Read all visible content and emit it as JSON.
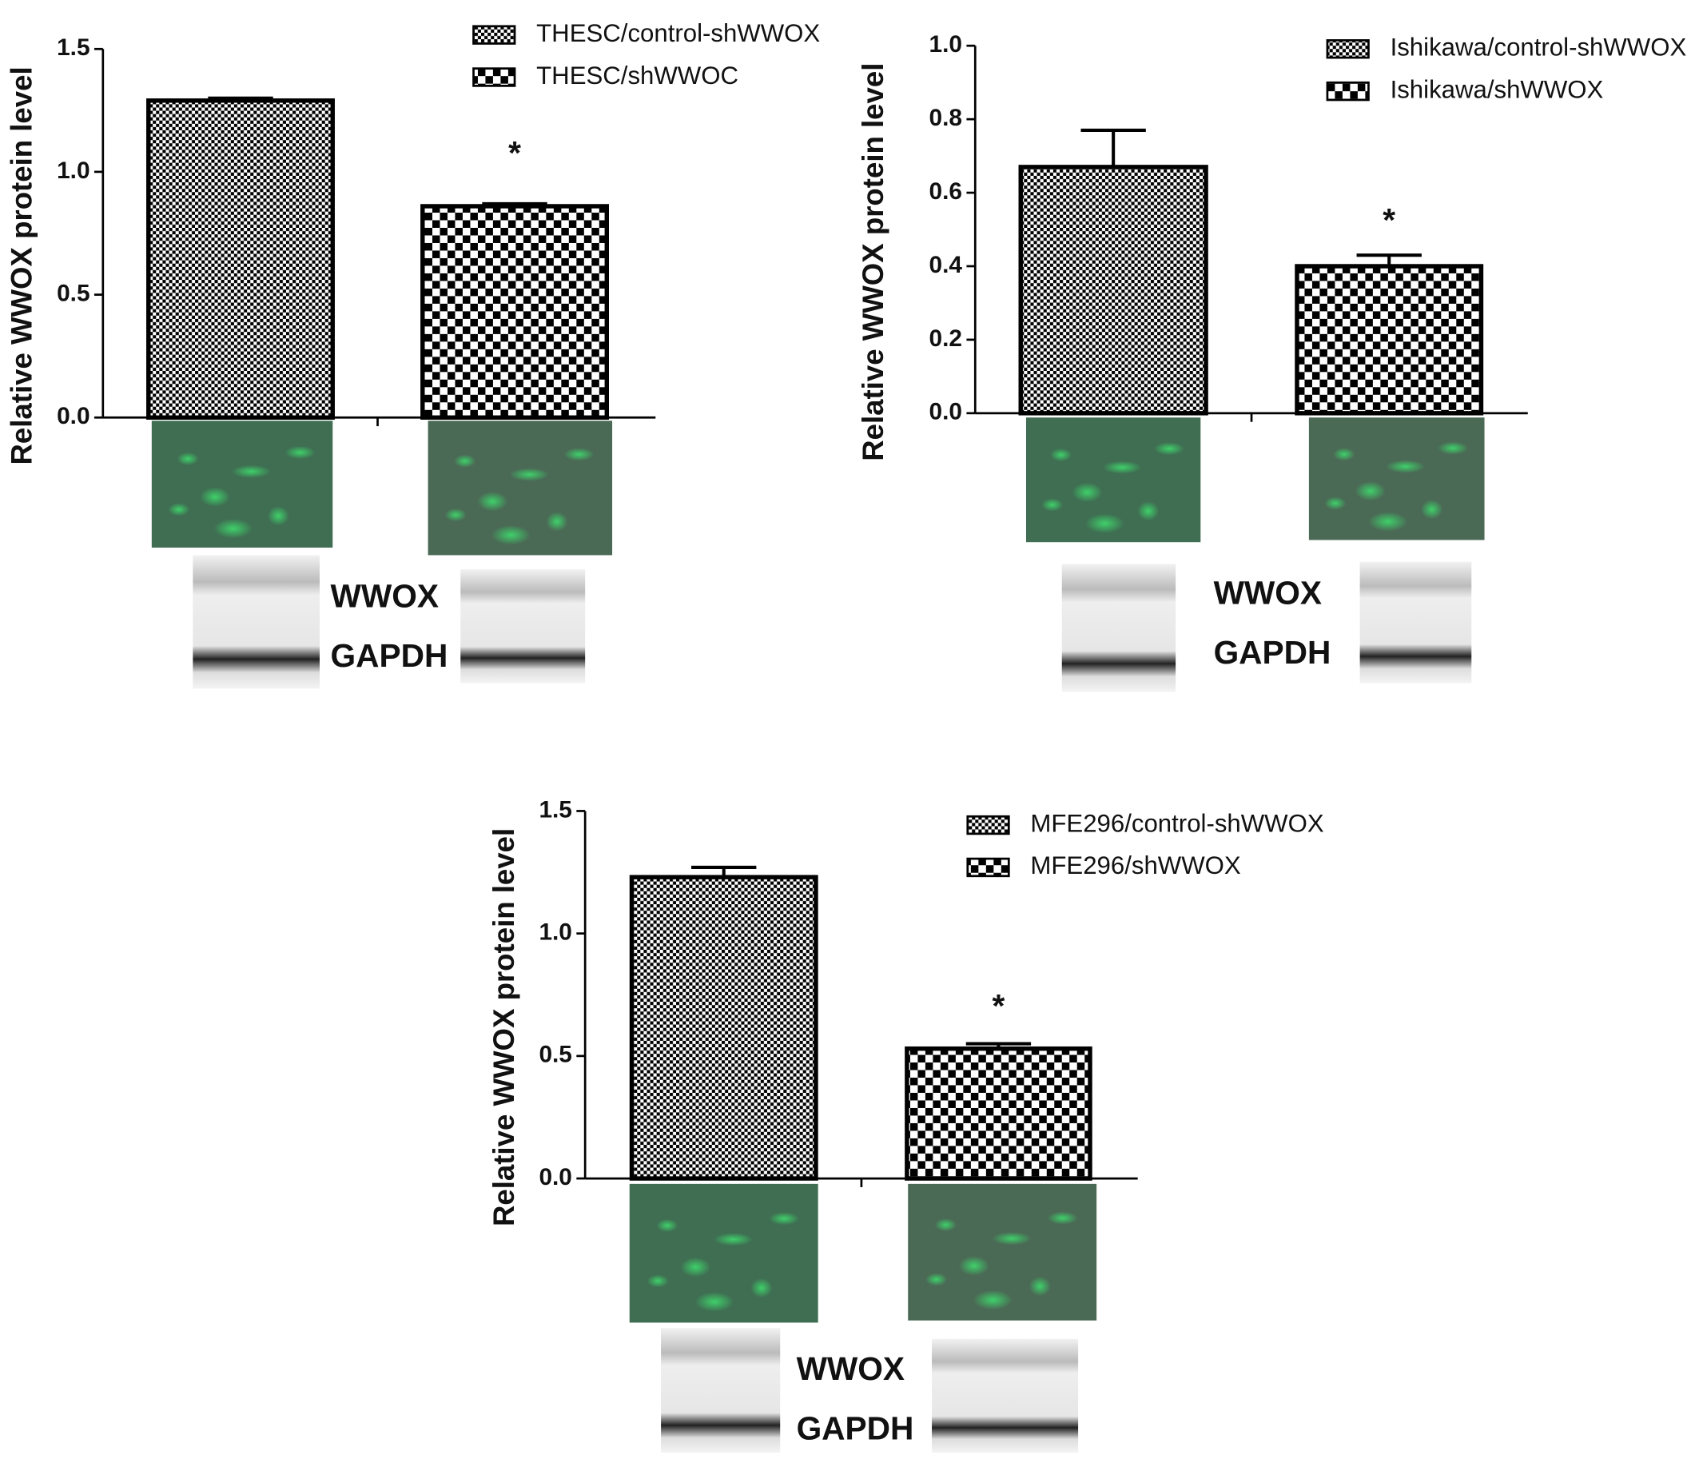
{
  "chart_data": [
    {
      "type": "bar",
      "ylabel": "Relative WWOX protein level",
      "ylim": [
        0,
        1.5
      ],
      "yticks": [
        {
          "value": 0,
          "label": "0.0"
        },
        0.5,
        {
          "value": 1,
          "label": "1.0"
        },
        1.5
      ],
      "series": [
        {
          "name": "THESC/control-shWWOX",
          "pattern": "fine",
          "color": "#000000",
          "values": [
            1.29
          ],
          "errors": [
            0.01
          ]
        },
        {
          "name": "THESC/shWWOC",
          "pattern": "checker",
          "color": "#000000",
          "values": [
            0.86
          ],
          "errors": [
            0.01
          ]
        }
      ],
      "annotation": "*",
      "blot_labels": [
        "WWOX",
        "GAPDH"
      ]
    },
    {
      "type": "bar",
      "ylabel": "Relative WWOX protein level",
      "ylim": [
        0,
        1
      ],
      "yticks": [
        {
          "value": 0,
          "label": "0.0"
        },
        0.2,
        0.4,
        0.6,
        0.8,
        {
          "value": 1,
          "label": "1.0"
        }
      ],
      "series": [
        {
          "name": "Ishikawa/control-shWWOX",
          "pattern": "fine",
          "color": "#000000",
          "values": [
            0.67
          ],
          "errors": [
            0.1
          ]
        },
        {
          "name": "Ishikawa/shWWOX",
          "pattern": "checker",
          "color": "#000000",
          "values": [
            0.4
          ],
          "errors": [
            0.03
          ]
        }
      ],
      "annotation": "*",
      "blot_labels": [
        "WWOX",
        "GAPDH"
      ]
    },
    {
      "type": "bar",
      "ylabel": "Relative WWOX protein level",
      "ylim": [
        0,
        1.5
      ],
      "yticks": [
        {
          "value": 0,
          "label": "0.0"
        },
        0.5,
        {
          "value": 1,
          "label": "1.0"
        },
        1.5
      ],
      "series": [
        {
          "name": "MFE296/control-shWWOX",
          "pattern": "fine",
          "color": "#000000",
          "values": [
            1.23
          ],
          "errors": [
            0.04
          ]
        },
        {
          "name": "MFE296/shWWOX",
          "pattern": "checker",
          "color": "#000000",
          "values": [
            0.53
          ],
          "errors": [
            0.02
          ]
        }
      ],
      "annotation": "*",
      "blot_labels": [
        "WWOX",
        "GAPDH"
      ]
    }
  ]
}
